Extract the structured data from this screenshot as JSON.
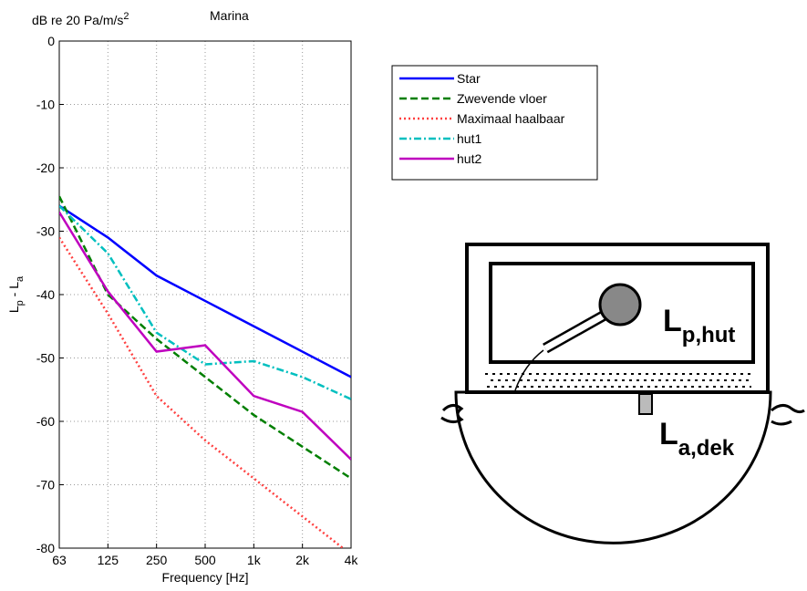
{
  "chart_data": {
    "type": "line",
    "title": "Marina",
    "units_parts": [
      "dB re 20 Pa/m/s",
      "2"
    ],
    "ylabel_parts": [
      "L",
      "p",
      " - L",
      "a"
    ],
    "xlabel": "Frequency [Hz]",
    "categories": [
      "63",
      "125",
      "250",
      "500",
      "1k",
      "2k",
      "4k"
    ],
    "ylim": [
      -80,
      0
    ],
    "yticks": [
      -80,
      -70,
      -60,
      -50,
      -40,
      -30,
      -20,
      -10,
      0
    ],
    "grid": true,
    "series": [
      {
        "name": "Star",
        "color": "#0000ff",
        "dash": "solid",
        "values": [
          -26,
          -31,
          -37,
          -41,
          -45,
          -49,
          -53
        ]
      },
      {
        "name": "Zwevende vloer",
        "color": "#007f00",
        "dash": "dashed",
        "values": [
          -24.5,
          -40,
          -47,
          -53,
          -59,
          -64,
          -69
        ]
      },
      {
        "name": "Maximaal haalbaar",
        "color": "#ff4040",
        "dash": "dotted",
        "values": [
          -31,
          -43,
          -56,
          -63,
          -69,
          -75,
          -81
        ]
      },
      {
        "name": "hut1",
        "color": "#00bfbf",
        "dash": "dashdot",
        "values": [
          -26,
          -33.5,
          -46,
          -51,
          -50.5,
          -53,
          -56.5
        ]
      },
      {
        "name": "hut2",
        "color": "#bf00bf",
        "dash": "solid",
        "values": [
          -27,
          -39.5,
          -49,
          -48,
          -56,
          -58.5,
          -66
        ]
      }
    ]
  },
  "diagram": {
    "label_p": [
      "L",
      "p,hut"
    ],
    "label_a": [
      "L",
      "a,dek"
    ]
  }
}
